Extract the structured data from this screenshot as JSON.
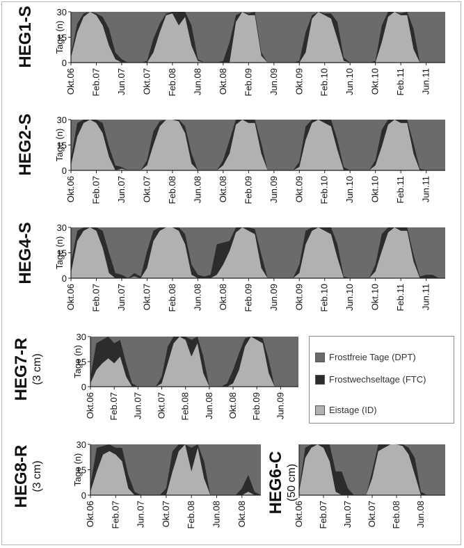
{
  "colors": {
    "dpt": "#6b6b6b",
    "ftc": "#2c2c2c",
    "id": "#b1b1b1",
    "axis": "#222222",
    "text": "#111111"
  },
  "legend": {
    "items": [
      {
        "key": "dpt",
        "label": "Frostfreie Tage (DPT)"
      },
      {
        "key": "ftc",
        "label": "Frostwechseltage (FTC)"
      },
      {
        "key": "id",
        "label": "Eistage (ID)"
      }
    ]
  },
  "chart_data": [
    {
      "type": "area",
      "stacked": true,
      "title": "HEG1-S",
      "subtitle": "",
      "ylabel": "Tage (n)",
      "ylim": [
        0,
        30
      ],
      "yticks": [
        0,
        15,
        30
      ],
      "xticks": [
        "Okt.06",
        "Feb.07",
        "Jun.07",
        "Okt.07",
        "Feb.08",
        "Jun.08",
        "Okt.08",
        "Feb.09",
        "Jun.09",
        "Okt.09",
        "Feb.10",
        "Jun.10",
        "Okt.10",
        "Feb.11",
        "Jun.11"
      ],
      "x": [
        "2006-10",
        "2006-11",
        "2006-12",
        "2007-01",
        "2007-02",
        "2007-03",
        "2007-04",
        "2007-05",
        "2007-06",
        "2007-07",
        "2007-08",
        "2007-09",
        "2007-10",
        "2007-11",
        "2007-12",
        "2008-01",
        "2008-02",
        "2008-03",
        "2008-04",
        "2008-05",
        "2008-06",
        "2008-07",
        "2008-08",
        "2008-09",
        "2008-10",
        "2008-11",
        "2008-12",
        "2009-01",
        "2009-02",
        "2009-03",
        "2009-04",
        "2009-05",
        "2009-06",
        "2009-07",
        "2009-08",
        "2009-09",
        "2009-10",
        "2009-11",
        "2009-12",
        "2010-01",
        "2010-02",
        "2010-03",
        "2010-04",
        "2010-05",
        "2010-06",
        "2010-07",
        "2010-08",
        "2010-09",
        "2010-10",
        "2010-11",
        "2010-12",
        "2011-01",
        "2011-02",
        "2011-03",
        "2011-04",
        "2011-05",
        "2011-06",
        "2011-07",
        "2011-08",
        "2011-09"
      ],
      "series": [
        {
          "key": "id",
          "values": [
            3,
            18,
            27,
            30,
            28,
            22,
            10,
            2,
            0,
            0,
            0,
            0,
            0,
            6,
            18,
            28,
            29,
            22,
            27,
            10,
            1,
            0,
            0,
            0,
            0,
            0,
            24,
            30,
            28,
            28,
            4,
            0,
            0,
            0,
            0,
            0,
            0,
            6,
            26,
            30,
            28,
            26,
            14,
            1,
            0,
            0,
            0,
            0,
            0,
            12,
            27,
            30,
            28,
            28,
            8,
            0,
            0,
            0,
            0,
            0
          ]
        },
        {
          "key": "ftc",
          "values": [
            2,
            5,
            2,
            0,
            1,
            5,
            10,
            4,
            2,
            0,
            0,
            0,
            1,
            8,
            5,
            1,
            1,
            8,
            3,
            12,
            1,
            0,
            0,
            0,
            1,
            12,
            4,
            0,
            1,
            2,
            2,
            0,
            0,
            0,
            0,
            0,
            1,
            12,
            2,
            0,
            1,
            3,
            10,
            2,
            0,
            0,
            0,
            0,
            1,
            10,
            3,
            0,
            1,
            2,
            12,
            0,
            0,
            0,
            0,
            0
          ]
        }
      ]
    },
    {
      "type": "area",
      "stacked": true,
      "title": "HEG2-S",
      "subtitle": "",
      "ylabel": "Tage (n)",
      "ylim": [
        0,
        30
      ],
      "yticks": [
        0,
        15,
        30
      ],
      "xticks": [
        "Okt.06",
        "Feb.07",
        "Jun.07",
        "Okt.07",
        "Feb.08",
        "Jun.08",
        "Okt.08",
        "Feb.09",
        "Jun.09",
        "Okt.09",
        "Feb.10",
        "Jun.10",
        "Okt.10",
        "Feb.11",
        "Jun.11"
      ],
      "x": [
        "2006-10",
        "2006-11",
        "2006-12",
        "2007-01",
        "2007-02",
        "2007-03",
        "2007-04",
        "2007-05",
        "2007-06",
        "2007-07",
        "2007-08",
        "2007-09",
        "2007-10",
        "2007-11",
        "2007-12",
        "2008-01",
        "2008-02",
        "2008-03",
        "2008-04",
        "2008-05",
        "2008-06",
        "2008-07",
        "2008-08",
        "2008-09",
        "2008-10",
        "2008-11",
        "2008-12",
        "2009-01",
        "2009-02",
        "2009-03",
        "2009-04",
        "2009-05",
        "2009-06",
        "2009-07",
        "2009-08",
        "2009-09",
        "2009-10",
        "2009-11",
        "2009-12",
        "2010-01",
        "2010-02",
        "2010-03",
        "2010-04",
        "2010-05",
        "2010-06",
        "2010-07",
        "2010-08",
        "2010-09",
        "2010-10",
        "2010-11",
        "2010-12",
        "2011-01",
        "2011-02",
        "2011-03",
        "2011-04",
        "2011-05",
        "2011-06",
        "2011-07",
        "2011-08",
        "2011-09"
      ],
      "series": [
        {
          "key": "id",
          "values": [
            3,
            20,
            28,
            30,
            28,
            22,
            8,
            0,
            1,
            0,
            0,
            0,
            3,
            15,
            26,
            30,
            30,
            29,
            22,
            4,
            0,
            0,
            0,
            0,
            3,
            10,
            27,
            30,
            28,
            28,
            10,
            0,
            0,
            0,
            0,
            0,
            2,
            18,
            28,
            30,
            28,
            26,
            12,
            0,
            0,
            0,
            0,
            0,
            3,
            14,
            27,
            30,
            28,
            28,
            10,
            0,
            0,
            0,
            0,
            0
          ]
        },
        {
          "key": "ftc",
          "values": [
            4,
            8,
            2,
            0,
            2,
            6,
            6,
            3,
            1,
            0,
            0,
            0,
            3,
            8,
            3,
            0,
            0,
            1,
            4,
            6,
            0,
            0,
            0,
            0,
            3,
            8,
            3,
            0,
            2,
            2,
            6,
            0,
            0,
            0,
            0,
            0,
            3,
            8,
            2,
            0,
            2,
            4,
            6,
            2,
            0,
            0,
            0,
            0,
            3,
            10,
            3,
            0,
            2,
            2,
            6,
            1,
            0,
            0,
            0,
            0
          ]
        }
      ]
    },
    {
      "type": "area",
      "stacked": true,
      "title": "HEG4-S",
      "subtitle": "",
      "ylabel": "Tage (n)",
      "ylim": [
        0,
        30
      ],
      "yticks": [
        0,
        15,
        30
      ],
      "xticks": [
        "Okt.06",
        "Feb.07",
        "Jun.07",
        "Okt.07",
        "Feb.08",
        "Jun.08",
        "Okt.08",
        "Feb.09",
        "Jun.09",
        "Okt.09",
        "Feb.10",
        "Jun.10",
        "Okt.10",
        "Feb.11",
        "Jun.11"
      ],
      "x": [
        "2006-10",
        "2006-11",
        "2006-12",
        "2007-01",
        "2007-02",
        "2007-03",
        "2007-04",
        "2007-05",
        "2007-06",
        "2007-07",
        "2007-08",
        "2007-09",
        "2007-10",
        "2007-11",
        "2007-12",
        "2008-01",
        "2008-02",
        "2008-03",
        "2008-04",
        "2008-05",
        "2008-06",
        "2008-07",
        "2008-08",
        "2008-09",
        "2008-10",
        "2008-11",
        "2008-12",
        "2009-01",
        "2009-02",
        "2009-03",
        "2009-04",
        "2009-05",
        "2009-06",
        "2009-07",
        "2009-08",
        "2009-09",
        "2009-10",
        "2009-11",
        "2009-12",
        "2010-01",
        "2010-02",
        "2010-03",
        "2010-04",
        "2010-05",
        "2010-06",
        "2010-07",
        "2010-08",
        "2010-09",
        "2010-10",
        "2010-11",
        "2010-12",
        "2011-01",
        "2011-02",
        "2011-03",
        "2011-04",
        "2011-05",
        "2011-06",
        "2011-07",
        "2011-08",
        "2011-09"
      ],
      "series": [
        {
          "key": "id",
          "values": [
            3,
            22,
            28,
            30,
            28,
            18,
            3,
            0,
            0,
            0,
            1,
            0,
            6,
            22,
            28,
            30,
            30,
            28,
            20,
            2,
            0,
            0,
            0,
            2,
            8,
            16,
            27,
            30,
            28,
            26,
            6,
            0,
            0,
            0,
            0,
            0,
            3,
            20,
            28,
            30,
            28,
            26,
            12,
            0,
            0,
            0,
            0,
            0,
            4,
            16,
            27,
            30,
            28,
            28,
            10,
            0,
            0,
            0,
            0,
            0
          ]
        },
        {
          "key": "ftc",
          "values": [
            6,
            6,
            2,
            0,
            2,
            10,
            12,
            3,
            2,
            0,
            2,
            1,
            10,
            6,
            2,
            0,
            0,
            2,
            6,
            6,
            2,
            1,
            2,
            18,
            13,
            6,
            3,
            0,
            2,
            3,
            8,
            0,
            0,
            0,
            0,
            0,
            5,
            8,
            2,
            0,
            2,
            4,
            8,
            1,
            0,
            0,
            0,
            0,
            4,
            10,
            3,
            0,
            2,
            2,
            4,
            1,
            2,
            2,
            0,
            0
          ]
        }
      ]
    },
    {
      "type": "area",
      "stacked": true,
      "title": "HEG7-R",
      "subtitle": "(3 cm)",
      "ylabel": "Tage (n)",
      "ylim": [
        0,
        30
      ],
      "yticks": [
        0,
        15,
        30
      ],
      "xticks": [
        "Okt.06",
        "Feb.07",
        "Jun.07",
        "Okt.07",
        "Feb.08",
        "Jun.08",
        "Okt.08",
        "Feb.09",
        "Jun.09"
      ],
      "x": [
        "2006-10",
        "2006-11",
        "2006-12",
        "2007-01",
        "2007-02",
        "2007-03",
        "2007-04",
        "2007-05",
        "2007-06",
        "2007-07",
        "2007-08",
        "2007-09",
        "2007-10",
        "2007-11",
        "2007-12",
        "2008-01",
        "2008-02",
        "2008-03",
        "2008-04",
        "2008-05",
        "2008-06",
        "2008-07",
        "2008-08",
        "2008-09",
        "2008-10",
        "2008-11",
        "2008-12",
        "2009-01",
        "2009-02",
        "2009-03",
        "2009-04",
        "2009-05",
        "2009-06",
        "2009-07",
        "2009-08",
        "2009-09"
      ],
      "series": [
        {
          "key": "id",
          "values": [
            2,
            10,
            14,
            17,
            14,
            18,
            6,
            0,
            0,
            0,
            0,
            0,
            2,
            14,
            26,
            30,
            28,
            18,
            26,
            8,
            0,
            0,
            0,
            0,
            2,
            10,
            24,
            30,
            28,
            26,
            8,
            0,
            0,
            0,
            0,
            0
          ]
        },
        {
          "key": "ftc",
          "values": [
            4,
            16,
            14,
            13,
            12,
            10,
            8,
            2,
            0,
            0,
            0,
            0,
            4,
            10,
            4,
            0,
            2,
            10,
            4,
            10,
            0,
            0,
            0,
            2,
            8,
            10,
            5,
            0,
            2,
            3,
            8,
            0,
            0,
            0,
            0,
            0
          ]
        }
      ]
    },
    {
      "type": "area",
      "stacked": true,
      "title": "HEG8-R",
      "subtitle": "(3 cm)",
      "ylabel": "Tage (n)",
      "ylim": [
        0,
        30
      ],
      "yticks": [
        0,
        15,
        30
      ],
      "xticks": [
        "Okt.06",
        "Feb.07",
        "Jun.07",
        "Okt.07",
        "Feb.08",
        "Jun.08",
        "Okt.08"
      ],
      "x": [
        "2006-10",
        "2006-11",
        "2006-12",
        "2007-01",
        "2007-02",
        "2007-03",
        "2007-04",
        "2007-05",
        "2007-06",
        "2007-07",
        "2007-08",
        "2007-09",
        "2007-10",
        "2007-11",
        "2007-12",
        "2008-01",
        "2008-02",
        "2008-03",
        "2008-04",
        "2008-05",
        "2008-06",
        "2008-07",
        "2008-08",
        "2008-09",
        "2008-10",
        "2008-11",
        "2008-12",
        "2009-01"
      ],
      "series": [
        {
          "key": "id",
          "values": [
            2,
            14,
            24,
            26,
            24,
            20,
            4,
            0,
            0,
            0,
            0,
            0,
            0,
            14,
            26,
            30,
            14,
            28,
            10,
            0,
            0,
            0,
            0,
            0,
            0,
            2,
            0,
            0
          ]
        },
        {
          "key": "ftc",
          "values": [
            4,
            14,
            5,
            4,
            4,
            8,
            8,
            2,
            0,
            0,
            0,
            0,
            4,
            12,
            4,
            0,
            14,
            2,
            10,
            0,
            0,
            0,
            0,
            0,
            4,
            10,
            2,
            0
          ]
        }
      ]
    },
    {
      "type": "area",
      "stacked": true,
      "title": "HEG6-C",
      "subtitle": "(50 cm)",
      "ylabel": "",
      "ylim": [
        0,
        30
      ],
      "yticks": [],
      "xticks": [
        "Okt.06",
        "Feb.07",
        "Jun.07",
        "Okt.07",
        "Feb.08",
        "Jun.08"
      ],
      "x": [
        "2006-10",
        "2006-11",
        "2006-12",
        "2007-01",
        "2007-02",
        "2007-03",
        "2007-04",
        "2007-05",
        "2007-06",
        "2007-07",
        "2007-08",
        "2007-09",
        "2007-10",
        "2007-11",
        "2007-12",
        "2008-01",
        "2008-02",
        "2008-03",
        "2008-04",
        "2008-05",
        "2008-06",
        "2008-07",
        "2008-08",
        "2008-09",
        "2008-10"
      ],
      "series": [
        {
          "key": "id",
          "values": [
            2,
            22,
            28,
            30,
            28,
            20,
            2,
            0,
            0,
            0,
            0,
            0,
            10,
            26,
            28,
            30,
            30,
            29,
            24,
            12,
            0,
            0,
            0,
            0,
            0
          ]
        },
        {
          "key": "ftc",
          "values": [
            2,
            6,
            2,
            0,
            2,
            10,
            12,
            14,
            4,
            0,
            0,
            0,
            4,
            4,
            2,
            0,
            0,
            1,
            4,
            10,
            2,
            0,
            0,
            0,
            0
          ]
        }
      ]
    }
  ]
}
